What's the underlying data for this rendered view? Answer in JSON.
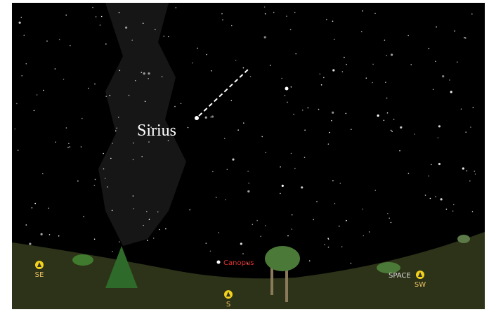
{
  "labels": {
    "sirius": "Sirius",
    "canopus": "Canopus"
  },
  "compass": [
    {
      "label": "SE"
    },
    {
      "label": "S"
    },
    {
      "label": "SW"
    }
  ],
  "hint": "SPACE"
}
